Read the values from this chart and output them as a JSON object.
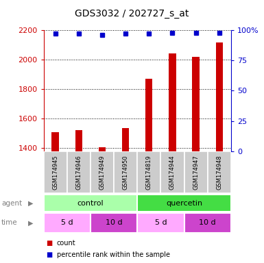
{
  "title": "GDS3032 / 202727_s_at",
  "samples": [
    "GSM174945",
    "GSM174946",
    "GSM174949",
    "GSM174950",
    "GSM174819",
    "GSM174944",
    "GSM174947",
    "GSM174948"
  ],
  "counts": [
    1510,
    1525,
    1405,
    1535,
    1870,
    2045,
    2020,
    2115
  ],
  "percentile_ranks": [
    97,
    97,
    96,
    97,
    97,
    98,
    98,
    98
  ],
  "ylim_left": [
    1380,
    2200
  ],
  "ylim_right": [
    0,
    100
  ],
  "yticks_left": [
    1400,
    1600,
    1800,
    2000,
    2200
  ],
  "yticks_right": [
    0,
    25,
    50,
    75,
    100
  ],
  "bar_color": "#cc0000",
  "dot_color": "#0000cc",
  "agent_groups": [
    {
      "label": "control",
      "start": 0,
      "end": 4,
      "color": "#aaffaa"
    },
    {
      "label": "quercetin",
      "start": 4,
      "end": 8,
      "color": "#44dd44"
    }
  ],
  "time_groups": [
    {
      "label": "5 d",
      "start": 0,
      "end": 2,
      "color": "#ffaaff"
    },
    {
      "label": "10 d",
      "start": 2,
      "end": 4,
      "color": "#cc44cc"
    },
    {
      "label": "5 d",
      "start": 4,
      "end": 6,
      "color": "#ffaaff"
    },
    {
      "label": "10 d",
      "start": 6,
      "end": 8,
      "color": "#cc44cc"
    }
  ],
  "sample_box_color": "#cccccc",
  "background_color": "#ffffff",
  "left_axis_color": "#cc0000",
  "right_axis_color": "#0000cc",
  "bar_width": 0.3,
  "title_fontsize": 10,
  "tick_fontsize": 8,
  "sample_fontsize": 6,
  "row_fontsize": 8
}
